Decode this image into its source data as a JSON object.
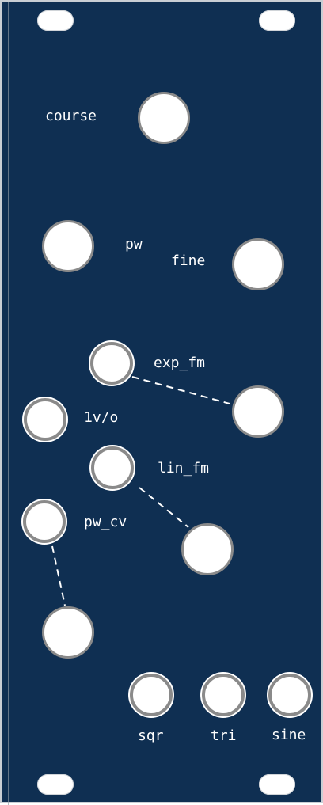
{
  "panel": {
    "background": "#0f2f52",
    "label_color": "#ffffff",
    "control_fill": "#ffffff",
    "control_ring": "#8a8a8a"
  },
  "labels": {
    "course": "course",
    "pw": "pw",
    "fine": "fine",
    "exp_fm": "exp_fm",
    "v_oct": "1v/o",
    "lin_fm": "lin_fm",
    "pw_cv": "pw_cv",
    "sqr": "sqr",
    "tri": "tri",
    "sine": "sine"
  }
}
